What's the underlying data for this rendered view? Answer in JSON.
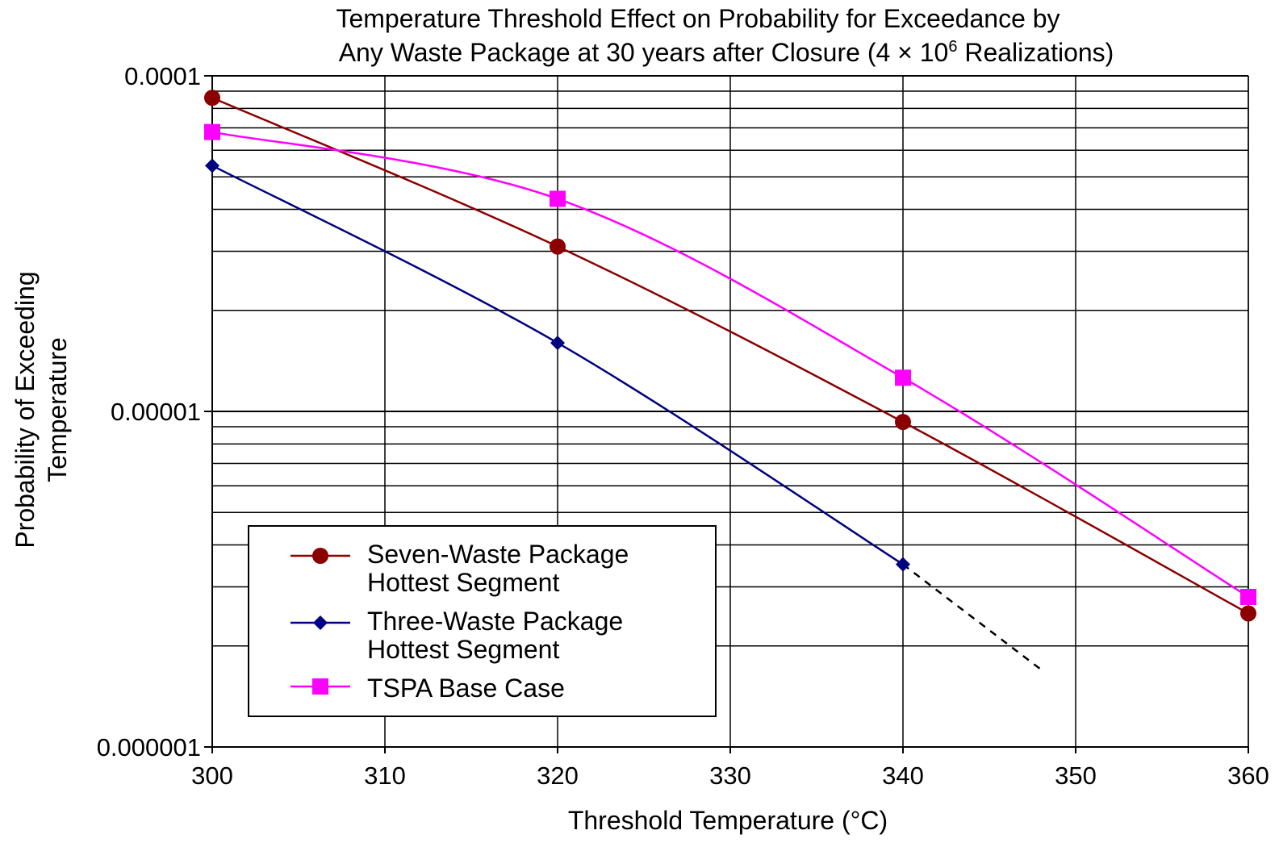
{
  "chart_data": {
    "type": "line",
    "title_lines": [
      "Temperature Threshold Effect on Probability for Exceedance by",
      "Any Waste Package at 30 years after Closure (4 × 10",
      "6",
      " Realizations)"
    ],
    "xlabel": "Threshold Temperature (°C)",
    "ylabel_lines": [
      "Probability of Exceeding",
      "Temperature"
    ],
    "xlim": [
      300,
      360
    ],
    "ylim": [
      1e-06,
      0.0001
    ],
    "y_scale": "log",
    "grid": true,
    "legend_position": "bottom-left",
    "x_ticks": [
      {
        "value": 300,
        "label": "300"
      },
      {
        "value": 310,
        "label": "310"
      },
      {
        "value": 320,
        "label": "320"
      },
      {
        "value": 330,
        "label": "330"
      },
      {
        "value": 340,
        "label": "340"
      },
      {
        "value": 350,
        "label": "350"
      },
      {
        "value": 360,
        "label": "360"
      }
    ],
    "y_ticks": [
      {
        "value": 0.0001,
        "label": "0.0001"
      },
      {
        "value": 1e-05,
        "label": "0.00001"
      },
      {
        "value": 1e-06,
        "label": "0.000001"
      }
    ],
    "series": [
      {
        "name": "Seven-Waste Package Hottest Segment",
        "name_lines": [
          "Seven-Waste Package",
          "Hottest Segment"
        ],
        "color": "#8b0000",
        "marker": "circle",
        "x": [
          300,
          320,
          340,
          360
        ],
        "y": [
          8.6e-05,
          3.1e-05,
          9.3e-06,
          2.5e-06
        ]
      },
      {
        "name": "Three-Waste Package Hottest Segment",
        "name_lines": [
          "Three-Waste Package",
          "Hottest Segment"
        ],
        "color": "#000080",
        "marker": "diamond",
        "x": [
          300,
          320,
          340
        ],
        "y": [
          5.4e-05,
          1.6e-05,
          3.5e-06
        ],
        "extrapolation": {
          "style": "dashed",
          "color": "#000000",
          "x": [
            340,
            348
          ],
          "y": [
            3.5e-06,
            1.7e-06
          ]
        }
      },
      {
        "name": "TSPA Base Case",
        "name_lines": [
          "TSPA Base Case"
        ],
        "color": "#ff00ff",
        "marker": "square",
        "x": [
          300,
          320,
          340,
          360
        ],
        "y": [
          6.8e-05,
          4.3e-05,
          1.26e-05,
          2.8e-06
        ]
      }
    ]
  }
}
